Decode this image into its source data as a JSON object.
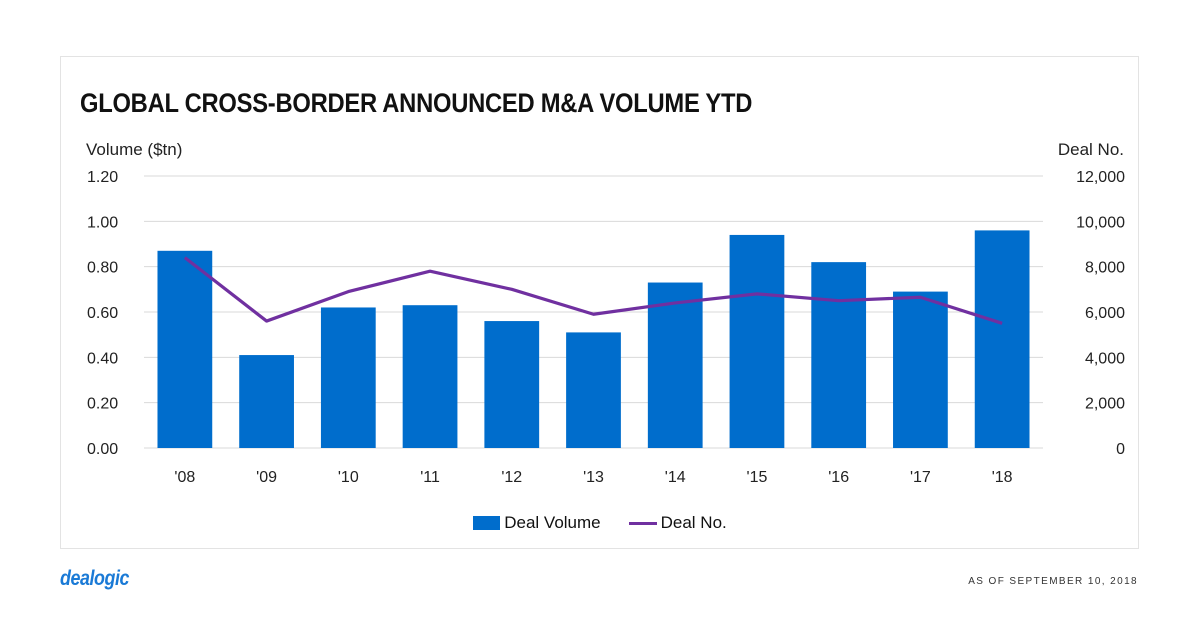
{
  "chart_data": {
    "type": "bar+line",
    "title": "GLOBAL CROSS-BORDER ANNOUNCED M&A VOLUME YTD",
    "xlabel": "",
    "ylabel": "Volume ($tn)",
    "y2label": "Deal No.",
    "categories": [
      "'08",
      "'09",
      "'10",
      "'11",
      "'12",
      "'13",
      "'14",
      "'15",
      "'16",
      "'17",
      "'18"
    ],
    "ylim": [
      0,
      1.2
    ],
    "y2lim": [
      0,
      12000
    ],
    "y_ticks": [
      "0.00",
      "0.20",
      "0.40",
      "0.60",
      "0.80",
      "1.00",
      "1.20"
    ],
    "y2_ticks": [
      "0",
      "2,000",
      "4,000",
      "6,000",
      "8,000",
      "10,000",
      "12,000"
    ],
    "grid": true,
    "legend_position": "bottom",
    "series": [
      {
        "name": "Deal Volume",
        "type": "bar",
        "axis": "left",
        "color": "#006dcc",
        "values": [
          0.87,
          0.41,
          0.62,
          0.63,
          0.56,
          0.51,
          0.73,
          0.94,
          0.82,
          0.69,
          0.96
        ]
      },
      {
        "name": "Deal No.",
        "type": "line",
        "axis": "right",
        "color": "#7030a0",
        "values": [
          8400,
          5600,
          6900,
          7800,
          7000,
          5900,
          6400,
          6800,
          6500,
          6650,
          5500
        ]
      }
    ]
  },
  "footer": {
    "brand": "dealogic",
    "as_of": "AS OF SEPTEMBER  10, 2018"
  }
}
